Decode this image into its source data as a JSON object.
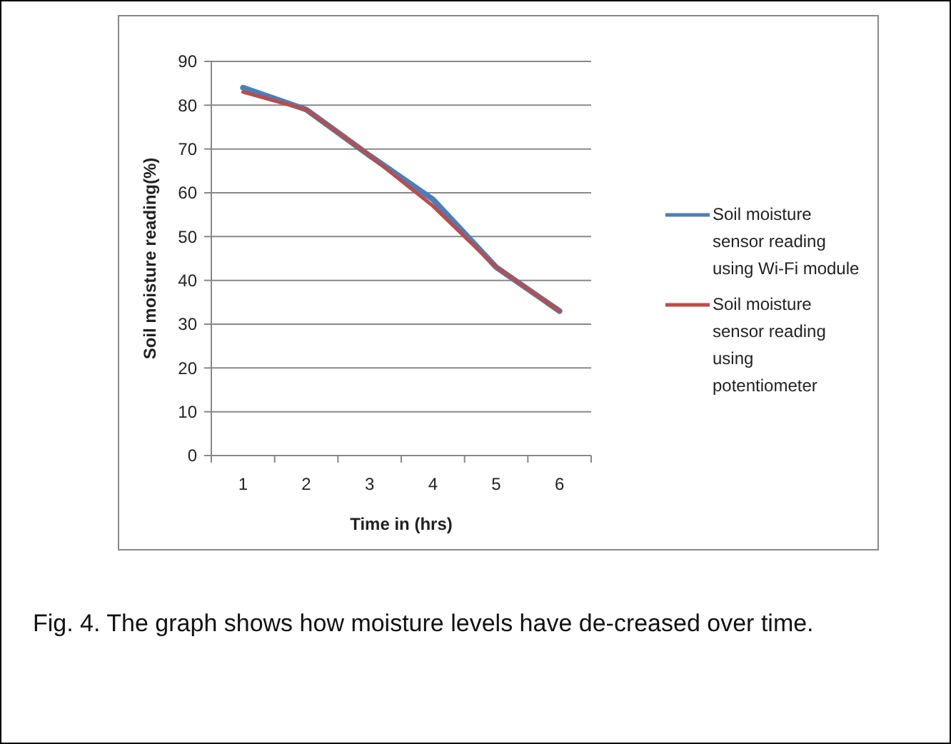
{
  "chart_data": {
    "type": "line",
    "xlabel": "Time in (hrs)",
    "ylabel": "Soil moisture reading(%)",
    "categories": [
      "1",
      "2",
      "3",
      "4",
      "5",
      "6"
    ],
    "series": [
      {
        "name": "Soil moisture sensor reading using Wi-Fi module",
        "color": "#4a7ebb",
        "values": [
          84,
          79,
          68.5,
          58.5,
          43,
          33
        ]
      },
      {
        "name": "Soil moisture sensor reading using potentiometer",
        "color": "#be4b48",
        "values": [
          83,
          79,
          68.5,
          57,
          43,
          33
        ]
      }
    ],
    "ylim": [
      0,
      90
    ],
    "yticks": [
      0,
      10,
      20,
      30,
      40,
      50,
      60,
      70,
      80,
      90
    ],
    "grid": "y",
    "legend": "right",
    "marker": "none",
    "line_style": "solid",
    "annotations": [
      "Fig. 4. The graph shows how moisture levels have de-creased over time."
    ]
  }
}
